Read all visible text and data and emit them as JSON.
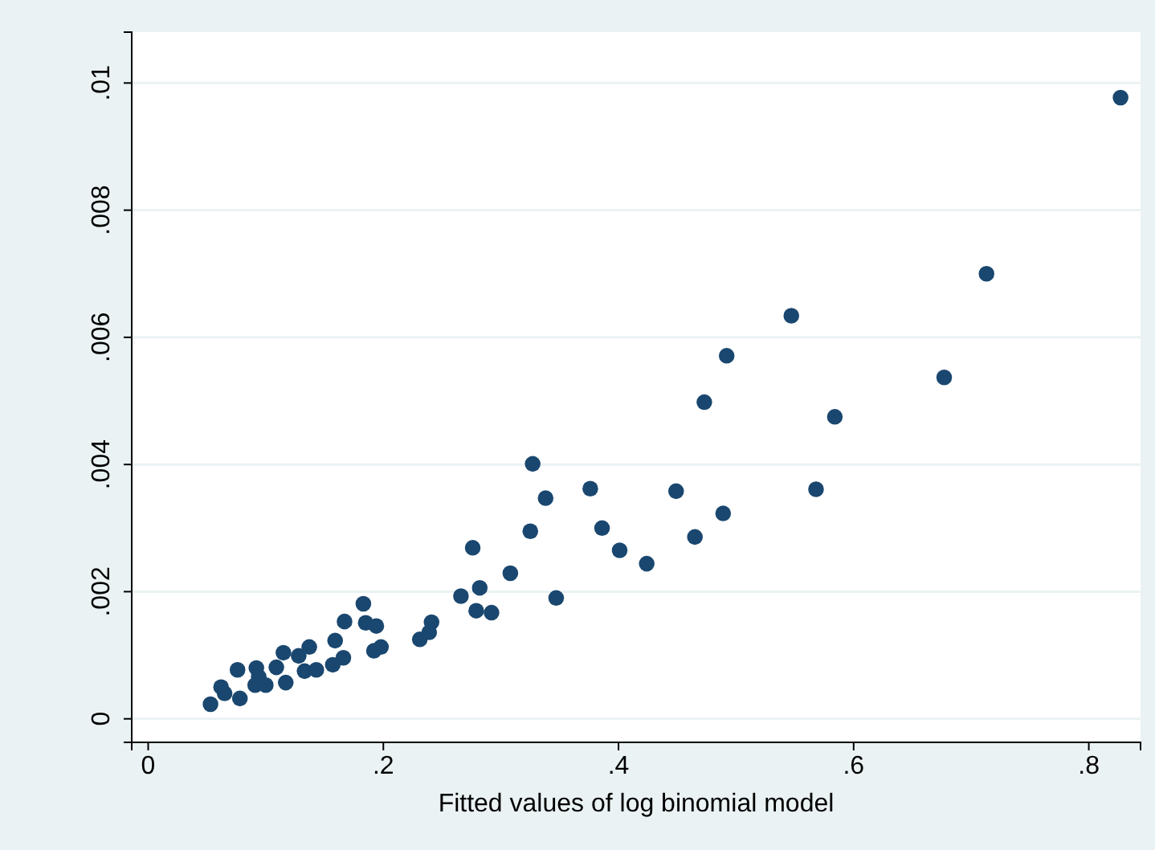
{
  "chart_data": {
    "type": "scatter",
    "xlabel": "Fitted values of log binomial model",
    "xlim": [
      -0.014,
      0.844
    ],
    "ylim": [
      -0.00037,
      0.0108
    ],
    "xticks": [
      0,
      {
        "value": 0.2,
        "label": ".2"
      },
      {
        "value": 0.4,
        "label": ".4"
      },
      {
        "value": 0.6,
        "label": ".6"
      },
      {
        "value": 0.8,
        "label": ".8"
      }
    ],
    "yticks": [
      0,
      {
        "value": 0.002,
        "label": ".002"
      },
      {
        "value": 0.004,
        "label": ".004"
      },
      {
        "value": 0.006,
        "label": ".006"
      },
      {
        "value": 0.008,
        "label": ".008"
      },
      {
        "value": 0.01,
        "label": ".01"
      }
    ],
    "grid": "y",
    "marker": "circle",
    "series": [
      {
        "color": "#1a476f",
        "x": [
          0.053,
          0.062,
          0.065,
          0.076,
          0.078,
          0.092,
          0.094,
          0.091,
          0.1,
          0.109,
          0.117,
          0.115,
          0.128,
          0.137,
          0.133,
          0.143,
          0.157,
          0.166,
          0.159,
          0.167,
          0.183,
          0.185,
          0.194,
          0.192,
          0.198,
          0.231,
          0.239,
          0.241,
          0.266,
          0.282,
          0.279,
          0.292,
          0.276,
          0.308,
          0.547,
          0.492,
          0.473,
          0.584,
          0.327,
          0.338,
          0.376,
          0.449,
          0.568,
          0.325,
          0.386,
          0.401,
          0.424,
          0.465,
          0.489,
          0.347,
          0.827,
          0.713,
          0.677
        ],
        "values": [
          0.00023,
          0.0005,
          0.0004,
          0.00077,
          0.00032,
          0.0008,
          0.00066,
          0.00053,
          0.00053,
          0.00081,
          0.00057,
          0.00104,
          0.00099,
          0.00113,
          0.00075,
          0.00077,
          0.00085,
          0.00096,
          0.00123,
          0.00153,
          0.00181,
          0.00151,
          0.00146,
          0.00107,
          0.00113,
          0.00125,
          0.00136,
          0.00152,
          0.00193,
          0.00206,
          0.0017,
          0.00167,
          0.00269,
          0.00229,
          0.00634,
          0.00571,
          0.00498,
          0.00475,
          0.00401,
          0.00347,
          0.00362,
          0.00358,
          0.00361,
          0.00295,
          0.003,
          0.00265,
          0.00244,
          0.00286,
          0.00323,
          0.0019,
          0.00977,
          0.007,
          0.00537
        ]
      }
    ]
  }
}
